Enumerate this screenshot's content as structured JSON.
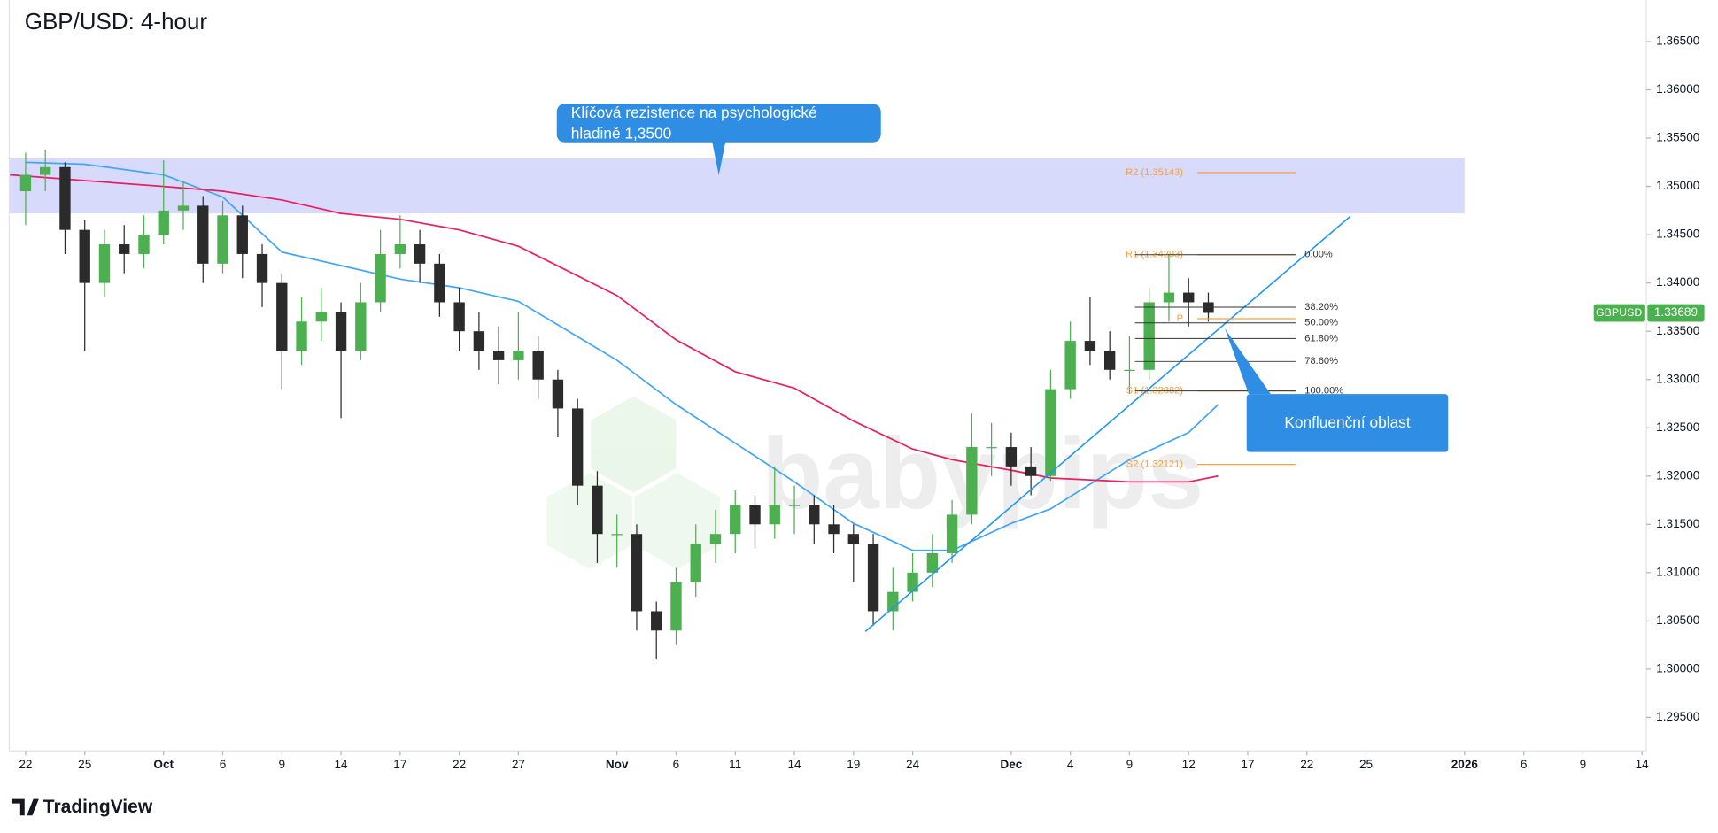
{
  "chart_data": {
    "type": "candlestick",
    "title": "GBP/USD: 4-hour",
    "xlim": [
      -0.83,
      82.22
    ],
    "ylim": [
      1.29153,
      1.36931
    ],
    "xticks": [
      {
        "value": 0,
        "label": "22"
      },
      {
        "value": 3,
        "label": "25"
      },
      {
        "value": 7,
        "label": "Oct"
      },
      {
        "value": 10,
        "label": "6"
      },
      {
        "value": 13,
        "label": "9"
      },
      {
        "value": 16,
        "label": "14"
      },
      {
        "value": 19,
        "label": "17"
      },
      {
        "value": 22,
        "label": "22"
      },
      {
        "value": 25,
        "label": "27"
      },
      {
        "value": 30,
        "label": "Nov"
      },
      {
        "value": 33,
        "label": "6"
      },
      {
        "value": 36,
        "label": "11"
      },
      {
        "value": 39,
        "label": "14"
      },
      {
        "value": 42,
        "label": "19"
      },
      {
        "value": 45,
        "label": "24"
      },
      {
        "value": 50,
        "label": "Dec"
      },
      {
        "value": 53,
        "label": "4"
      },
      {
        "value": 56,
        "label": "9"
      },
      {
        "value": 59,
        "label": "12"
      },
      {
        "value": 62,
        "label": "17"
      },
      {
        "value": 65,
        "label": "22"
      },
      {
        "value": 68,
        "label": "25"
      },
      {
        "value": 73,
        "label": "2026"
      },
      {
        "value": 76,
        "label": "6"
      },
      {
        "value": 79,
        "label": "9"
      },
      {
        "value": 82,
        "label": "14"
      }
    ],
    "yticks": [
      {
        "value": 1.295,
        "label": "1.29500"
      },
      {
        "value": 1.3,
        "label": "1.30000"
      },
      {
        "value": 1.305,
        "label": "1.30500"
      },
      {
        "value": 1.31,
        "label": "1.31000"
      },
      {
        "value": 1.315,
        "label": "1.31500"
      },
      {
        "value": 1.32,
        "label": "1.32000"
      },
      {
        "value": 1.325,
        "label": "1.32500"
      },
      {
        "value": 1.33,
        "label": "1.33000"
      },
      {
        "value": 1.335,
        "label": "1.33500"
      },
      {
        "value": 1.34,
        "label": "1.34000"
      },
      {
        "value": 1.345,
        "label": "1.34500"
      },
      {
        "value": 1.35,
        "label": "1.35000"
      },
      {
        "value": 1.355,
        "label": "1.35500"
      },
      {
        "value": 1.36,
        "label": "1.36000"
      },
      {
        "value": 1.365,
        "label": "1.36500"
      }
    ],
    "up_color": "#4caf50",
    "down_color": "#2b2b2b",
    "candles": {
      "x": [
        0,
        1,
        2,
        3,
        4,
        5,
        6,
        7,
        8,
        9,
        10,
        11,
        12,
        13,
        14,
        15,
        16,
        17,
        18,
        19,
        20,
        21,
        22,
        23,
        24,
        25,
        26,
        27,
        28,
        29,
        30,
        31,
        32,
        33,
        34,
        35,
        36,
        37,
        38,
        39,
        40,
        41,
        42,
        43,
        44,
        45,
        46,
        47,
        48,
        49,
        50,
        51,
        52,
        53,
        54,
        55,
        56,
        57,
        58,
        59,
        60
      ],
      "open": [
        1.3495,
        1.3512,
        1.352,
        1.3455,
        1.34,
        1.344,
        1.343,
        1.345,
        1.3475,
        1.348,
        1.342,
        1.347,
        1.343,
        1.34,
        1.333,
        1.336,
        1.337,
        1.333,
        1.338,
        1.343,
        1.344,
        1.342,
        1.338,
        1.335,
        1.333,
        1.332,
        1.333,
        1.33,
        1.327,
        1.319,
        1.314,
        1.314,
        1.306,
        1.304,
        1.309,
        1.313,
        1.314,
        1.317,
        1.315,
        1.317,
        1.317,
        1.315,
        1.314,
        1.313,
        1.306,
        1.308,
        1.31,
        1.312,
        1.316,
        1.323,
        1.323,
        1.321,
        1.32,
        1.329,
        1.334,
        1.333,
        1.331,
        1.331,
        1.338,
        1.339,
        1.338
      ],
      "high": [
        1.3535,
        1.3538,
        1.3525,
        1.3465,
        1.3455,
        1.346,
        1.347,
        1.3527,
        1.3505,
        1.349,
        1.3485,
        1.348,
        1.344,
        1.341,
        1.3385,
        1.3395,
        1.338,
        1.34,
        1.3455,
        1.347,
        1.3455,
        1.343,
        1.3395,
        1.337,
        1.3355,
        1.337,
        1.3345,
        1.331,
        1.328,
        1.3205,
        1.316,
        1.315,
        1.307,
        1.3105,
        1.315,
        1.3165,
        1.3185,
        1.318,
        1.321,
        1.319,
        1.318,
        1.317,
        1.315,
        1.314,
        1.3105,
        1.312,
        1.314,
        1.3175,
        1.3265,
        1.3255,
        1.3245,
        1.323,
        1.331,
        1.336,
        1.3385,
        1.335,
        1.3345,
        1.3395,
        1.343,
        1.3405,
        1.339
      ],
      "low": [
        1.346,
        1.3495,
        1.343,
        1.333,
        1.3385,
        1.341,
        1.3415,
        1.344,
        1.3455,
        1.34,
        1.341,
        1.3405,
        1.3375,
        1.329,
        1.3315,
        1.334,
        1.326,
        1.332,
        1.337,
        1.3415,
        1.34,
        1.3365,
        1.333,
        1.331,
        1.3295,
        1.33,
        1.328,
        1.324,
        1.317,
        1.311,
        1.3105,
        1.304,
        1.301,
        1.3025,
        1.3075,
        1.311,
        1.312,
        1.3125,
        1.3135,
        1.314,
        1.313,
        1.312,
        1.309,
        1.3045,
        1.304,
        1.307,
        1.3085,
        1.311,
        1.315,
        1.32,
        1.319,
        1.318,
        1.3195,
        1.328,
        1.3315,
        1.33,
        1.3285,
        1.33,
        1.336,
        1.3355,
        1.336
      ],
      "close": [
        1.3512,
        1.352,
        1.3455,
        1.34,
        1.344,
        1.343,
        1.345,
        1.3475,
        1.348,
        1.342,
        1.347,
        1.343,
        1.34,
        1.333,
        1.336,
        1.337,
        1.333,
        1.338,
        1.343,
        1.344,
        1.342,
        1.338,
        1.335,
        1.333,
        1.332,
        1.333,
        1.33,
        1.327,
        1.319,
        1.314,
        1.314,
        1.306,
        1.304,
        1.309,
        1.313,
        1.314,
        1.317,
        1.315,
        1.317,
        1.317,
        1.315,
        1.314,
        1.313,
        1.306,
        1.308,
        1.31,
        1.312,
        1.316,
        1.323,
        1.323,
        1.321,
        1.32,
        1.329,
        1.334,
        1.333,
        1.331,
        1.331,
        1.338,
        1.339,
        1.338,
        1.3369
      ]
    },
    "series": [
      {
        "color": "#42a5f5",
        "x": [
          0,
          3,
          7,
          10,
          13,
          16,
          19,
          22,
          25,
          30,
          33,
          36,
          39,
          42,
          45,
          47,
          50,
          52,
          56,
          59,
          60.5
        ],
        "values": [
          1.3525,
          1.3523,
          1.3512,
          1.3489,
          1.3432,
          1.3418,
          1.3404,
          1.3395,
          1.3381,
          1.332,
          1.3274,
          1.3234,
          1.3194,
          1.3151,
          1.3123,
          1.3123,
          1.3151,
          1.3166,
          1.3217,
          1.3245,
          1.3274
        ]
      },
      {
        "color": "#e91e63",
        "x": [
          -0.8,
          3,
          7,
          10,
          13,
          16,
          19,
          22,
          25,
          30,
          33,
          36,
          39,
          42,
          45,
          47,
          50,
          52,
          56,
          59,
          60.5
        ],
        "values": [
          1.3512,
          1.3506,
          1.35,
          1.3495,
          1.3486,
          1.3472,
          1.3466,
          1.3455,
          1.3438,
          1.3387,
          1.3341,
          1.3308,
          1.3291,
          1.3257,
          1.3228,
          1.3217,
          1.3206,
          1.3198,
          1.3194,
          1.3194,
          1.32
        ]
      }
    ],
    "trendline": {
      "color": "#2196f3",
      "x": [
        42.6,
        67.2
      ],
      "values": [
        1.3039,
        1.3469
      ]
    },
    "zone": {
      "color": "#d6d8fb",
      "from": 1.3472,
      "to": 1.3529,
      "x_end": 73
    },
    "pivots": {
      "color": "#f5a142",
      "levels": [
        {
          "label": "R2 (1.35143)",
          "value": 1.35143
        },
        {
          "label": "R1 (1.34293)",
          "value": 1.34293
        },
        {
          "label": "P",
          "value": 1.3363
        },
        {
          "label": "S1 (1.32882)",
          "value": 1.32882
        },
        {
          "label": "S2 (1.32121)",
          "value": 1.32121
        }
      ]
    },
    "fibonacci": {
      "color": "#333333",
      "levels": [
        {
          "label": "0.00%",
          "value": 1.34293
        },
        {
          "label": "38.20%",
          "value": 1.33749
        },
        {
          "label": "50.00%",
          "value": 1.33587
        },
        {
          "label": "61.80%",
          "value": 1.33425
        },
        {
          "label": "78.60%",
          "value": 1.33187
        },
        {
          "label": "100.00%",
          "value": 1.32882
        }
      ]
    },
    "callouts": [
      {
        "lines": [
          "Klíčová rezistence na psychologické",
          "hladině 1,3500"
        ]
      },
      {
        "lines": [
          "Konfluenční oblast"
        ]
      }
    ],
    "price_tag": {
      "symbol": "GBPUSD",
      "value": 1.33689,
      "color": "#4caf50"
    },
    "watermark": "babypips",
    "branding": "TradingView"
  }
}
